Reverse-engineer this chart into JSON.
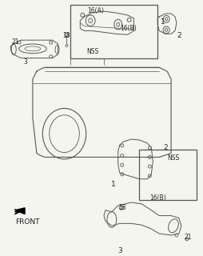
{
  "bg_color": "#f5f5f0",
  "line_color": "#555555",
  "text_color": "#222222",
  "title": "",
  "front_label": "FRONT",
  "labels": {
    "top_box_16A": "16(A)",
    "top_box_16B": "16(B)",
    "top_box_NSS": "NSS",
    "top_1": "1",
    "top_2": "2",
    "top_3": "3",
    "top_18": "18",
    "top_21": "21",
    "bot_NSS": "NSS",
    "bot_16B": "16(B)",
    "bot_1": "1",
    "bot_2": "2",
    "bot_3": "3",
    "bot_18": "18",
    "bot_21": "21"
  },
  "font_size": 6.5,
  "small_font": 5.5
}
